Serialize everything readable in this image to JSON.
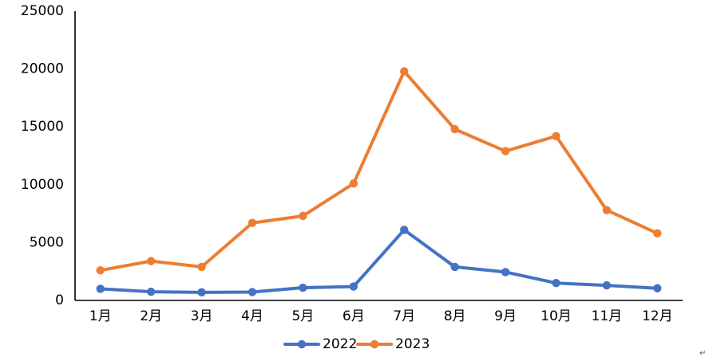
{
  "chart_data": {
    "type": "line",
    "categories": [
      "1月",
      "2月",
      "3月",
      "4月",
      "5月",
      "6月",
      "7月",
      "8月",
      "9月",
      "10月",
      "11月",
      "12月"
    ],
    "ylim": [
      0,
      25000
    ],
    "y_ticks": [
      0,
      5000,
      10000,
      15000,
      20000,
      25000
    ],
    "y_tick_labels": [
      "0",
      "5000",
      "10000",
      "15000",
      "20000",
      "25000"
    ],
    "grid": false,
    "legend_position": "bottom",
    "series": [
      {
        "name": "2022",
        "color": "#4472C4",
        "values": [
          1000,
          750,
          700,
          720,
          1100,
          1200,
          6100,
          2900,
          2450,
          1500,
          1300,
          1050
        ]
      },
      {
        "name": "2023",
        "color": "#ED7D31",
        "values": [
          2600,
          3400,
          2900,
          6700,
          7300,
          10100,
          19800,
          14800,
          12900,
          14200,
          7800,
          5800
        ]
      }
    ]
  },
  "corner_mark": "↵"
}
